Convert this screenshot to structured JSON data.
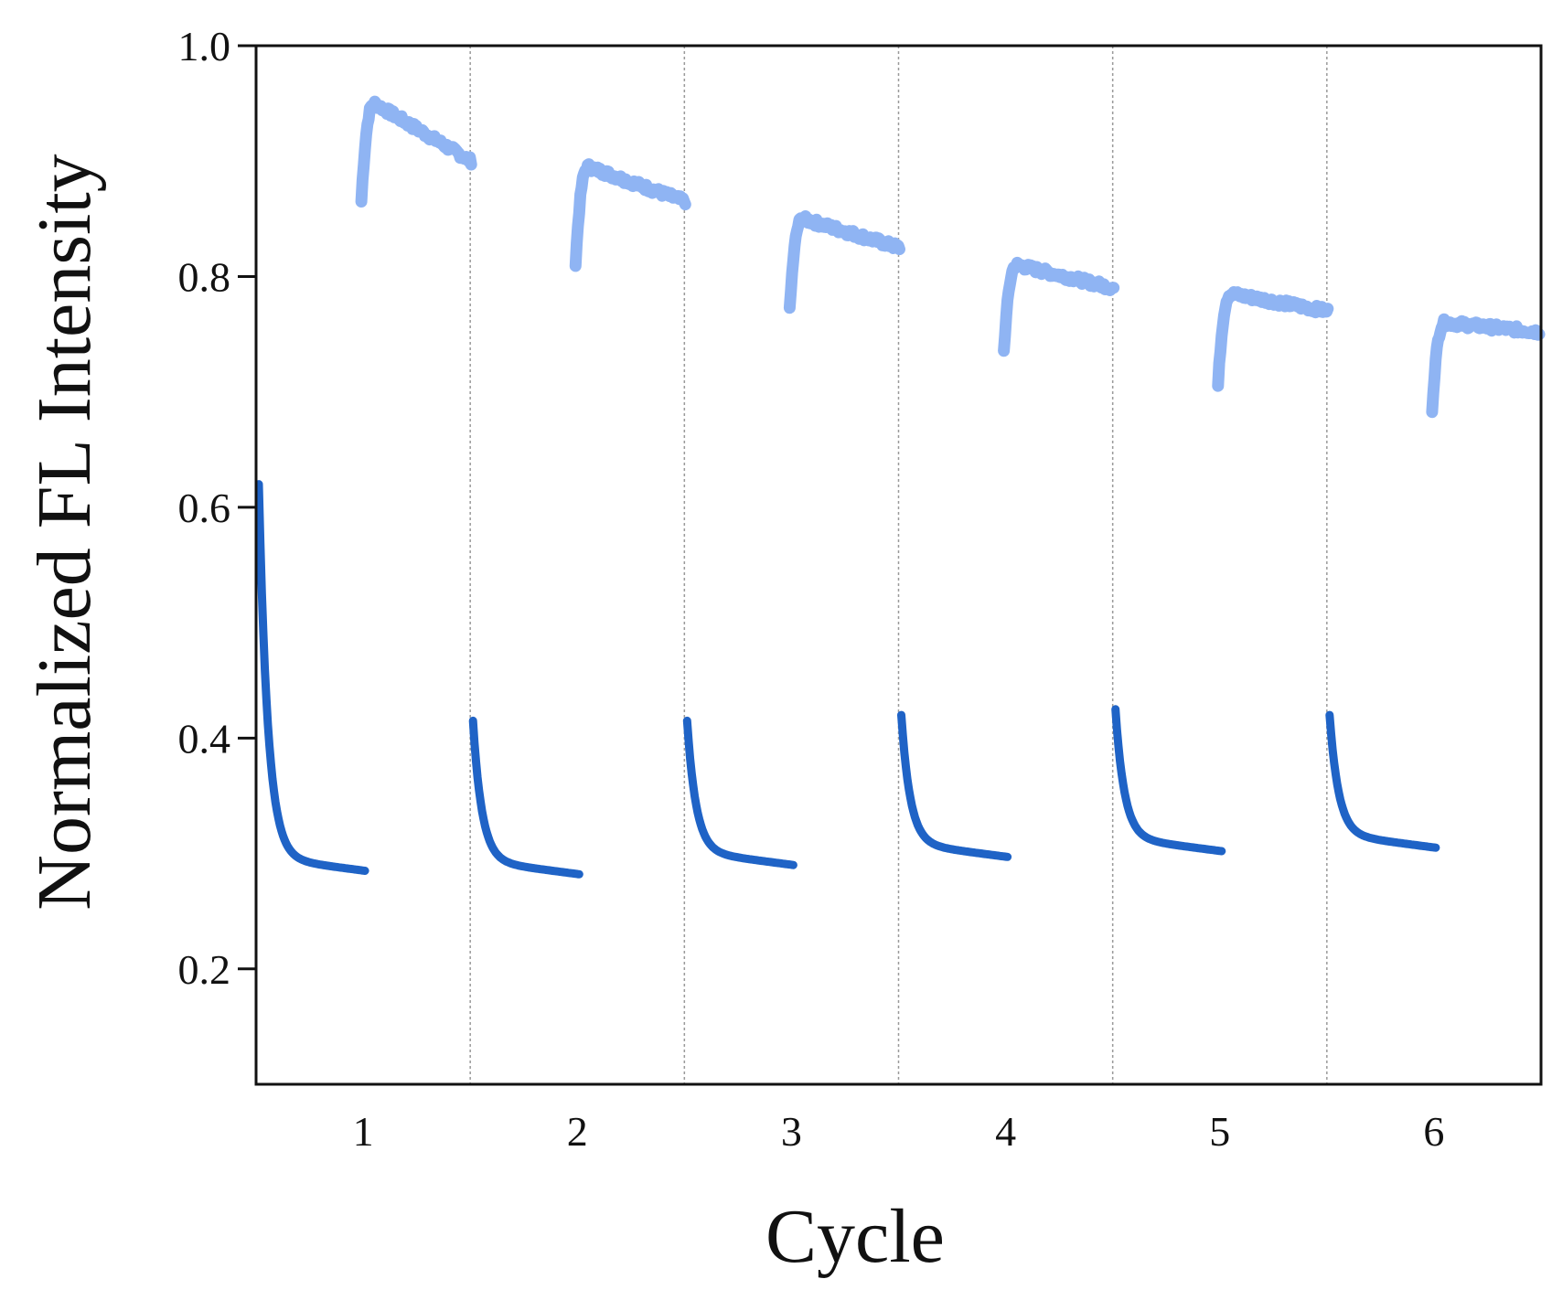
{
  "chart_data": {
    "type": "line",
    "title": "",
    "xlabel": "Cycle",
    "ylabel": "Normalized FL Intensity",
    "ylim": [
      0.1,
      1.0
    ],
    "yticks": [
      "0.2",
      "0.4",
      "0.6",
      "0.8",
      "1.0"
    ],
    "ytick_values": [
      0.2,
      0.4,
      0.6,
      0.8,
      1.0
    ],
    "categories": [
      "1",
      "2",
      "3",
      "4",
      "5",
      "6"
    ],
    "grid": "dashed vertical separators between cycles",
    "series": [
      {
        "name": "dark",
        "color": "#1f63c6",
        "segments": [
          {
            "cycle": 1,
            "start": 0.62,
            "end": 0.285
          },
          {
            "cycle": 2,
            "start": 0.415,
            "end": 0.282
          },
          {
            "cycle": 3,
            "start": 0.415,
            "end": 0.29
          },
          {
            "cycle": 4,
            "start": 0.42,
            "end": 0.297
          },
          {
            "cycle": 5,
            "start": 0.425,
            "end": 0.302
          },
          {
            "cycle": 6,
            "start": 0.42,
            "end": 0.305
          }
        ]
      },
      {
        "name": "light",
        "color": "#8fb4f3",
        "segments": [
          {
            "cycle": 1,
            "start": 0.865,
            "peak": 0.95,
            "end": 0.9
          },
          {
            "cycle": 2,
            "start": 0.81,
            "peak": 0.895,
            "end": 0.865
          },
          {
            "cycle": 3,
            "start": 0.77,
            "peak": 0.85,
            "end": 0.825
          },
          {
            "cycle": 4,
            "start": 0.735,
            "peak": 0.81,
            "end": 0.79
          },
          {
            "cycle": 5,
            "start": 0.705,
            "peak": 0.785,
            "end": 0.77
          },
          {
            "cycle": 6,
            "start": 0.685,
            "peak": 0.76,
            "end": 0.752
          }
        ]
      }
    ]
  }
}
